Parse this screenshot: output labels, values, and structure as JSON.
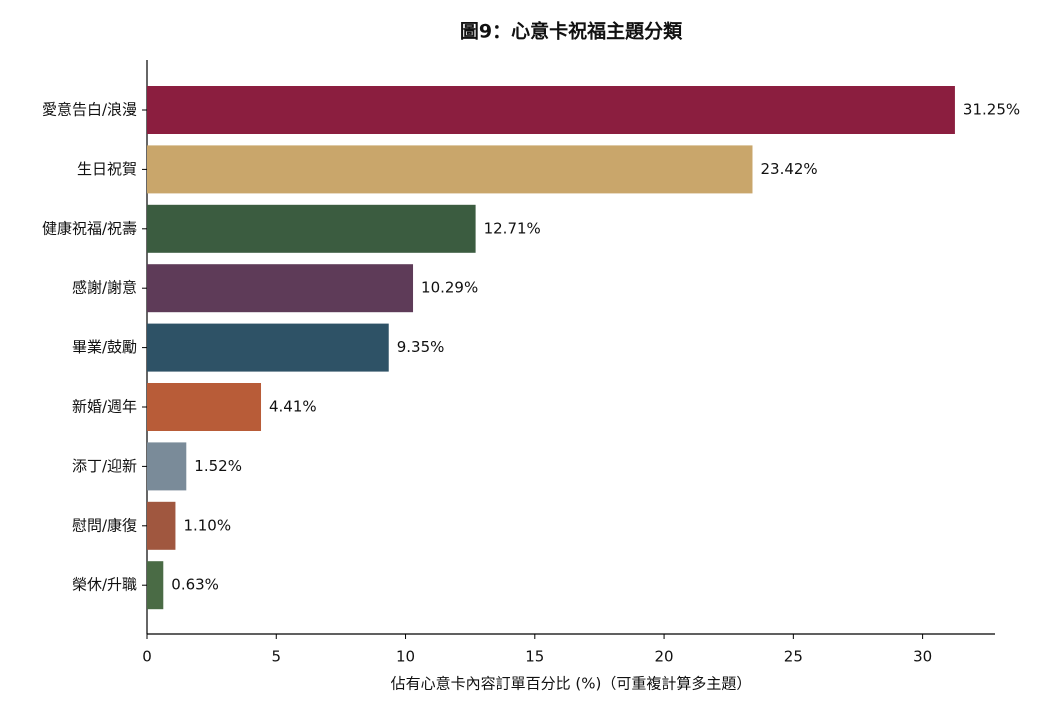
{
  "chart_data": {
    "type": "bar",
    "orientation": "horizontal",
    "title": "圖9：心意卡祝福主題分類",
    "x_label": "佔有心意卡內容訂單百分比 (%)（可重複計算多主題）",
    "categories": [
      "愛意告白/浪漫",
      "生日祝賀",
      "健康祝福/祝壽",
      "感謝/謝意",
      "畢業/鼓勵",
      "新婚/週年",
      "添丁/迎新",
      "慰問/康復",
      "榮休/升職"
    ],
    "values": [
      31.25,
      23.42,
      12.71,
      10.29,
      9.35,
      4.41,
      1.52,
      1.1,
      0.63
    ],
    "value_labels": [
      "31.25%",
      "23.42%",
      "12.71%",
      "10.29%",
      "9.35%",
      "4.41%",
      "1.52%",
      "1.10%",
      "0.63%"
    ],
    "colors": [
      "#8b1e3f",
      "#c9a66b",
      "#3b5c40",
      "#5e3b58",
      "#2e5266",
      "#b85c38",
      "#7a8b99",
      "#a0573f",
      "#4a6b45"
    ],
    "xlim": [
      0,
      32.8
    ],
    "xticks": [
      0,
      5,
      10,
      15,
      20,
      25,
      30
    ],
    "grid": false
  }
}
